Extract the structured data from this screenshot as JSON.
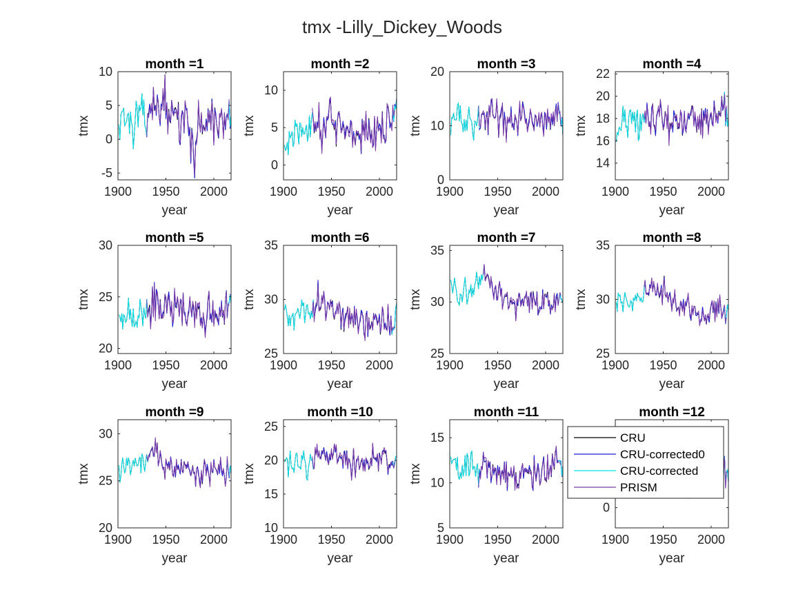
{
  "title": "tmx -Lilly_Dickey_Woods",
  "series": [
    {
      "name": "CRU",
      "color": "#000000"
    },
    {
      "name": "CRU-corrected0",
      "color": "#1f1fd6"
    },
    {
      "name": "CRU-corrected",
      "color": "#00e5ee"
    },
    {
      "name": "PRISM",
      "color": "#7a3aa8"
    }
  ],
  "chart_data": [
    {
      "type": "line",
      "title": "month =1",
      "xlabel": "year",
      "ylabel": "tmx",
      "xlim": [
        1900,
        2018
      ],
      "ylim": [
        -6,
        10
      ],
      "xticks": [
        1900,
        1950,
        2000
      ],
      "yticks": [
        -5,
        0,
        5,
        10
      ],
      "corrected_end": 1930,
      "anchors": {
        "x": [
          1900,
          1905,
          1910,
          1915,
          1920,
          1925,
          1930,
          1935,
          1940,
          1945,
          1950,
          1955,
          1960,
          1965,
          1970,
          1975,
          1980,
          1985,
          1990,
          1995,
          2000,
          2005,
          2010,
          2015,
          2018
        ],
        "y": [
          2,
          4,
          3,
          1,
          4,
          3,
          3,
          6,
          4,
          5,
          6,
          3,
          4,
          2,
          3,
          1,
          -2,
          3,
          2,
          4,
          2,
          3,
          2,
          4,
          3
        ]
      },
      "amp": 4.5
    },
    {
      "type": "line",
      "title": "month =2",
      "xlabel": "year",
      "ylabel": "tmx",
      "xlim": [
        1900,
        2018
      ],
      "ylim": [
        -2,
        12.5
      ],
      "xticks": [
        1900,
        1950,
        2000
      ],
      "yticks": [
        0,
        5,
        10
      ],
      "corrected_end": 1930,
      "anchors": {
        "x": [
          1900,
          1905,
          1910,
          1915,
          1920,
          1925,
          1930,
          1935,
          1940,
          1945,
          1950,
          1955,
          1960,
          1965,
          1970,
          1975,
          1980,
          1985,
          1990,
          1995,
          2000,
          2005,
          2010,
          2015,
          2018
        ],
        "y": [
          1,
          3,
          4,
          5,
          5,
          4,
          7,
          6,
          5,
          6,
          6,
          5,
          6,
          5,
          5,
          4,
          3,
          5,
          5,
          4,
          5,
          5,
          6,
          7,
          8
        ]
      },
      "amp": 4
    },
    {
      "type": "line",
      "title": "month =3",
      "xlabel": "year",
      "ylabel": "tmx",
      "xlim": [
        1900,
        2018
      ],
      "ylim": [
        0,
        20
      ],
      "xticks": [
        1900,
        1950,
        2000
      ],
      "yticks": [
        0,
        10,
        20
      ],
      "corrected_end": 1930,
      "anchors": {
        "x": [
          1900,
          1905,
          1910,
          1915,
          1920,
          1925,
          1930,
          1935,
          1940,
          1945,
          1950,
          1955,
          1960,
          1965,
          1970,
          1975,
          1980,
          1985,
          1990,
          1995,
          2000,
          2005,
          2010,
          2015,
          2018
        ],
        "y": [
          11,
          12,
          12,
          11,
          11,
          10,
          11,
          12,
          12,
          11,
          12,
          10,
          11,
          11,
          11,
          12,
          11,
          11,
          12,
          11,
          11,
          12,
          12,
          11,
          10
        ]
      },
      "amp": 4.5
    },
    {
      "type": "line",
      "title": "month =4",
      "xlabel": "year",
      "ylabel": "tmx",
      "xlim": [
        1900,
        2018
      ],
      "ylim": [
        12.5,
        22.2
      ],
      "xticks": [
        1900,
        1950,
        2000
      ],
      "yticks": [
        14,
        16,
        18,
        20,
        22
      ],
      "corrected_end": 1930,
      "anchors": {
        "x": [
          1900,
          1905,
          1910,
          1915,
          1920,
          1925,
          1930,
          1935,
          1940,
          1945,
          1950,
          1955,
          1960,
          1965,
          1970,
          1975,
          1980,
          1985,
          1990,
          1995,
          2000,
          2005,
          2010,
          2015,
          2018
        ],
        "y": [
          16.5,
          17,
          17.5,
          18,
          17.5,
          17,
          18,
          18.5,
          18,
          18,
          18.5,
          18,
          18,
          18,
          17.5,
          17.5,
          18,
          18,
          17.5,
          18,
          18,
          18.5,
          18.5,
          19,
          17
        ]
      },
      "amp": 2.5
    },
    {
      "type": "line",
      "title": "month =5",
      "xlabel": "year",
      "ylabel": "tmx",
      "xlim": [
        1900,
        2018
      ],
      "ylim": [
        19.5,
        30
      ],
      "xticks": [
        1900,
        1950,
        2000
      ],
      "yticks": [
        20,
        25,
        30
      ],
      "corrected_end": 1930,
      "anchors": {
        "x": [
          1900,
          1905,
          1910,
          1915,
          1920,
          1925,
          1930,
          1935,
          1940,
          1945,
          1950,
          1955,
          1960,
          1965,
          1970,
          1975,
          1980,
          1985,
          1990,
          1995,
          2000,
          2005,
          2010,
          2015,
          2018
        ],
        "y": [
          23,
          23,
          23.5,
          22.5,
          23,
          23.5,
          23.5,
          24.5,
          24.5,
          24,
          24.5,
          24,
          24.5,
          24,
          23.5,
          24,
          23.5,
          24,
          23,
          23.5,
          23.5,
          24,
          24,
          24.5,
          25
        ]
      },
      "amp": 2.7
    },
    {
      "type": "line",
      "title": "month =6",
      "xlabel": "year",
      "ylabel": "tmx",
      "xlim": [
        1900,
        2018
      ],
      "ylim": [
        25,
        35
      ],
      "xticks": [
        1900,
        1950,
        2000
      ],
      "yticks": [
        25,
        30,
        35
      ],
      "corrected_end": 1930,
      "anchors": {
        "x": [
          1900,
          1905,
          1910,
          1915,
          1920,
          1925,
          1930,
          1935,
          1940,
          1945,
          1950,
          1955,
          1960,
          1965,
          1970,
          1975,
          1980,
          1985,
          1990,
          1995,
          2000,
          2005,
          2010,
          2015,
          2018
        ],
        "y": [
          28,
          28,
          28.5,
          29,
          29,
          29,
          29,
          30,
          29.5,
          29,
          29.5,
          29,
          28.5,
          28.5,
          28.5,
          28,
          28,
          28,
          27.5,
          27.5,
          28,
          28,
          28,
          28,
          28.5
        ]
      },
      "amp": 2.2
    },
    {
      "type": "line",
      "title": "month =7",
      "xlabel": "year",
      "ylabel": "tmx",
      "xlim": [
        1900,
        2018
      ],
      "ylim": [
        25,
        35.5
      ],
      "xticks": [
        1900,
        1950,
        2000
      ],
      "yticks": [
        25,
        30,
        35
      ],
      "corrected_end": 1935,
      "anchors": {
        "x": [
          1900,
          1905,
          1910,
          1915,
          1920,
          1925,
          1930,
          1935,
          1940,
          1945,
          1950,
          1955,
          1960,
          1965,
          1970,
          1975,
          1980,
          1985,
          1990,
          1995,
          2000,
          2005,
          2010,
          2015,
          2018
        ],
        "y": [
          32,
          31,
          30.5,
          31,
          31,
          31,
          32,
          33,
          32,
          31,
          31.5,
          30.5,
          30,
          30,
          30,
          30,
          30,
          30,
          30,
          29.5,
          30,
          30,
          30,
          30.5,
          30
        ]
      },
      "amp": 2
    },
    {
      "type": "line",
      "title": "month =8",
      "xlabel": "year",
      "ylabel": "tmx",
      "xlim": [
        1900,
        2018
      ],
      "ylim": [
        25,
        35
      ],
      "xticks": [
        1900,
        1950,
        2000
      ],
      "yticks": [
        25,
        30,
        35
      ],
      "corrected_end": 1930,
      "anchors": {
        "x": [
          1900,
          1905,
          1910,
          1915,
          1920,
          1925,
          1930,
          1935,
          1940,
          1945,
          1950,
          1955,
          1960,
          1965,
          1970,
          1975,
          1980,
          1985,
          1990,
          1995,
          2000,
          2005,
          2010,
          2015,
          2018
        ],
        "y": [
          30,
          30,
          30,
          29.5,
          30,
          30,
          30.5,
          31.5,
          31,
          30.5,
          31,
          30.5,
          30,
          29.5,
          29.5,
          29.5,
          29,
          29,
          28.5,
          28.5,
          29,
          29,
          29,
          29,
          29
        ]
      },
      "amp": 1.8
    },
    {
      "type": "line",
      "title": "month =9",
      "xlabel": "year",
      "ylabel": "tmx",
      "xlim": [
        1900,
        2018
      ],
      "ylim": [
        20,
        31.5
      ],
      "xticks": [
        1900,
        1950,
        2000
      ],
      "yticks": [
        20,
        25,
        30
      ],
      "corrected_end": 1930,
      "anchors": {
        "x": [
          1900,
          1905,
          1910,
          1915,
          1920,
          1925,
          1930,
          1935,
          1940,
          1945,
          1950,
          1955,
          1960,
          1965,
          1970,
          1975,
          1980,
          1985,
          1990,
          1995,
          2000,
          2005,
          2010,
          2015,
          2018
        ],
        "y": [
          26,
          26.5,
          27,
          26.5,
          27,
          27,
          27.5,
          28,
          27.5,
          27,
          27,
          26.5,
          26.5,
          26.5,
          26.5,
          26.5,
          26,
          26,
          26,
          26,
          26.5,
          26.5,
          26,
          26.5,
          27
        ]
      },
      "amp": 2.2
    },
    {
      "type": "line",
      "title": "month =10",
      "xlabel": "year",
      "ylabel": "tmx",
      "xlim": [
        1900,
        2018
      ],
      "ylim": [
        10,
        26
      ],
      "xticks": [
        1900,
        1950,
        2000
      ],
      "yticks": [
        10,
        15,
        20,
        25
      ],
      "corrected_end": 1930,
      "anchors": {
        "x": [
          1900,
          1905,
          1910,
          1915,
          1920,
          1925,
          1930,
          1935,
          1940,
          1945,
          1950,
          1955,
          1960,
          1965,
          1970,
          1975,
          1980,
          1985,
          1990,
          1995,
          2000,
          2005,
          2010,
          2015,
          2018
        ],
        "y": [
          20,
          19.5,
          19,
          20,
          19,
          19,
          20,
          21,
          21,
          20.5,
          21,
          20.5,
          21,
          21,
          20,
          19.5,
          20,
          20,
          19.5,
          20,
          20,
          20,
          19.5,
          20,
          20
        ]
      },
      "amp": 3
    },
    {
      "type": "line",
      "title": "month =11",
      "xlabel": "year",
      "ylabel": "tmx",
      "xlim": [
        1900,
        2018
      ],
      "ylim": [
        5,
        17
      ],
      "xticks": [
        1900,
        1950,
        2000
      ],
      "yticks": [
        5,
        10,
        15
      ],
      "corrected_end": 1930,
      "anchors": {
        "x": [
          1900,
          1905,
          1910,
          1915,
          1920,
          1925,
          1930,
          1935,
          1940,
          1945,
          1950,
          1955,
          1960,
          1965,
          1970,
          1975,
          1980,
          1985,
          1990,
          1995,
          2000,
          2005,
          2010,
          2015,
          2018
        ],
        "y": [
          12,
          12,
          12,
          11.5,
          12,
          11,
          11.5,
          12,
          12,
          11,
          11.5,
          11,
          11,
          10.5,
          11,
          11,
          11,
          11,
          11,
          11,
          11,
          11.5,
          12,
          12,
          11
        ]
      },
      "amp": 2.8
    },
    {
      "type": "line",
      "title": "month =12",
      "xlabel": "year",
      "ylabel": "tmx",
      "xlim": [
        1900,
        2018
      ],
      "ylim": [
        -3,
        13
      ],
      "xticks": [
        1900,
        1950,
        2000
      ],
      "yticks": [
        0
      ],
      "corrected_end": 1930,
      "anchors": {
        "x": [
          1900,
          1905,
          1910,
          1915,
          1920,
          1925,
          1930,
          1935,
          1940,
          1945,
          1950,
          1955,
          1960,
          1965,
          1970,
          1975,
          1980,
          1985,
          1990,
          1995,
          2000,
          2005,
          2010,
          2015,
          2018
        ],
        "y": [
          5,
          5,
          5.5,
          5,
          5,
          4.5,
          5,
          5.5,
          5,
          5,
          5,
          4.5,
          4.5,
          4.5,
          4.5,
          4,
          4,
          4,
          4.5,
          4.5,
          5,
          5,
          5.5,
          6,
          5
        ]
      },
      "amp": 4
    }
  ],
  "legend": {
    "location": "month 12 panel, upper-left",
    "entries": [
      "CRU",
      "CRU-corrected0",
      "CRU-corrected",
      "PRISM"
    ]
  }
}
